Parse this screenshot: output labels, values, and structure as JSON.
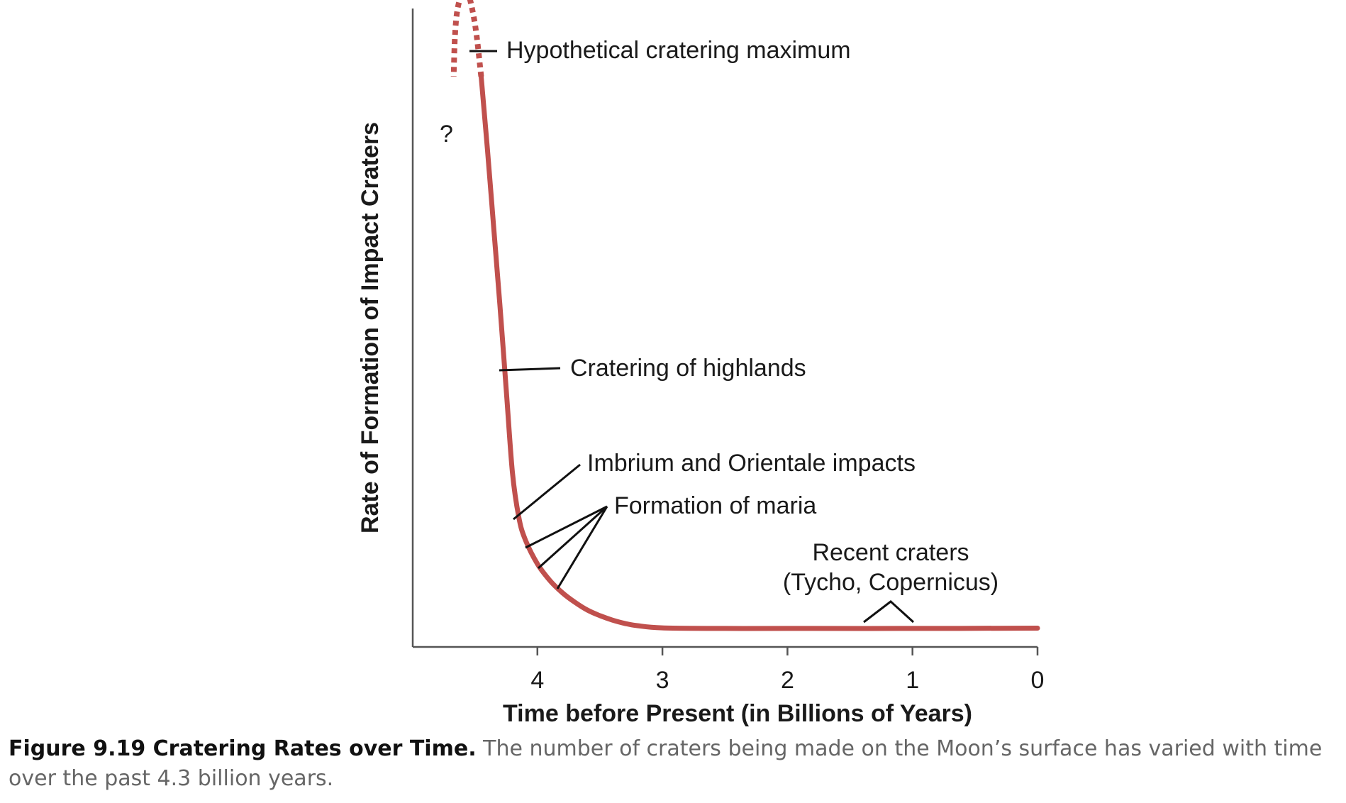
{
  "chart_data": {
    "type": "line",
    "x_axis": {
      "label": "Time before Present (in Billions of Years)",
      "reversed": true,
      "ticks": [
        4,
        3,
        2,
        1,
        0
      ],
      "tick_labels": [
        "4",
        "3",
        "2",
        "1",
        "0"
      ]
    },
    "y_axis": {
      "label": "Rate of Formation of Impact Craters",
      "ticks": []
    },
    "series": [
      {
        "line_style": "solid",
        "x": [
          4.45,
          4.4,
          4.35,
          4.3,
          4.25,
          4.2,
          4.15,
          4.1,
          4.0,
          3.9,
          3.8,
          3.7,
          3.6,
          3.5,
          3.4,
          3.3,
          3.2,
          3.0,
          2.5,
          2.0,
          1.0,
          0.0
        ],
        "y": [
          100,
          87,
          73,
          59,
          44,
          29,
          21,
          17,
          12.5,
          9.5,
          7.3,
          5.6,
          4.2,
          3.2,
          2.4,
          1.8,
          1.4,
          1.0,
          0.9,
          0.9,
          0.9,
          0.95
        ]
      },
      {
        "line_style": "dotted",
        "x": [
          4.45,
          4.49,
          4.53,
          4.56,
          4.6,
          4.64,
          4.66,
          4.67
        ],
        "y": [
          100,
          108,
          113,
          115,
          115,
          112,
          107,
          100
        ]
      }
    ],
    "annotations": [
      {
        "text": "Hypothetical cratering maximum"
      },
      {
        "text": "?"
      },
      {
        "text": "Cratering of highlands"
      },
      {
        "text": "Imbrium and Orientale impacts"
      },
      {
        "text": "Formation of maria"
      },
      {
        "text": "Recent craters"
      },
      {
        "text": "(Tycho, Copernicus)"
      }
    ],
    "colors": {
      "curve": "#c0504d",
      "axis": "#555555",
      "leader": "#111111"
    }
  },
  "caption": {
    "label": "Figure 9.19 Cratering Rates over Time.",
    "text": " The number of craters being made on the Moon’s surface has varied with time over the past 4.3 billion years."
  }
}
